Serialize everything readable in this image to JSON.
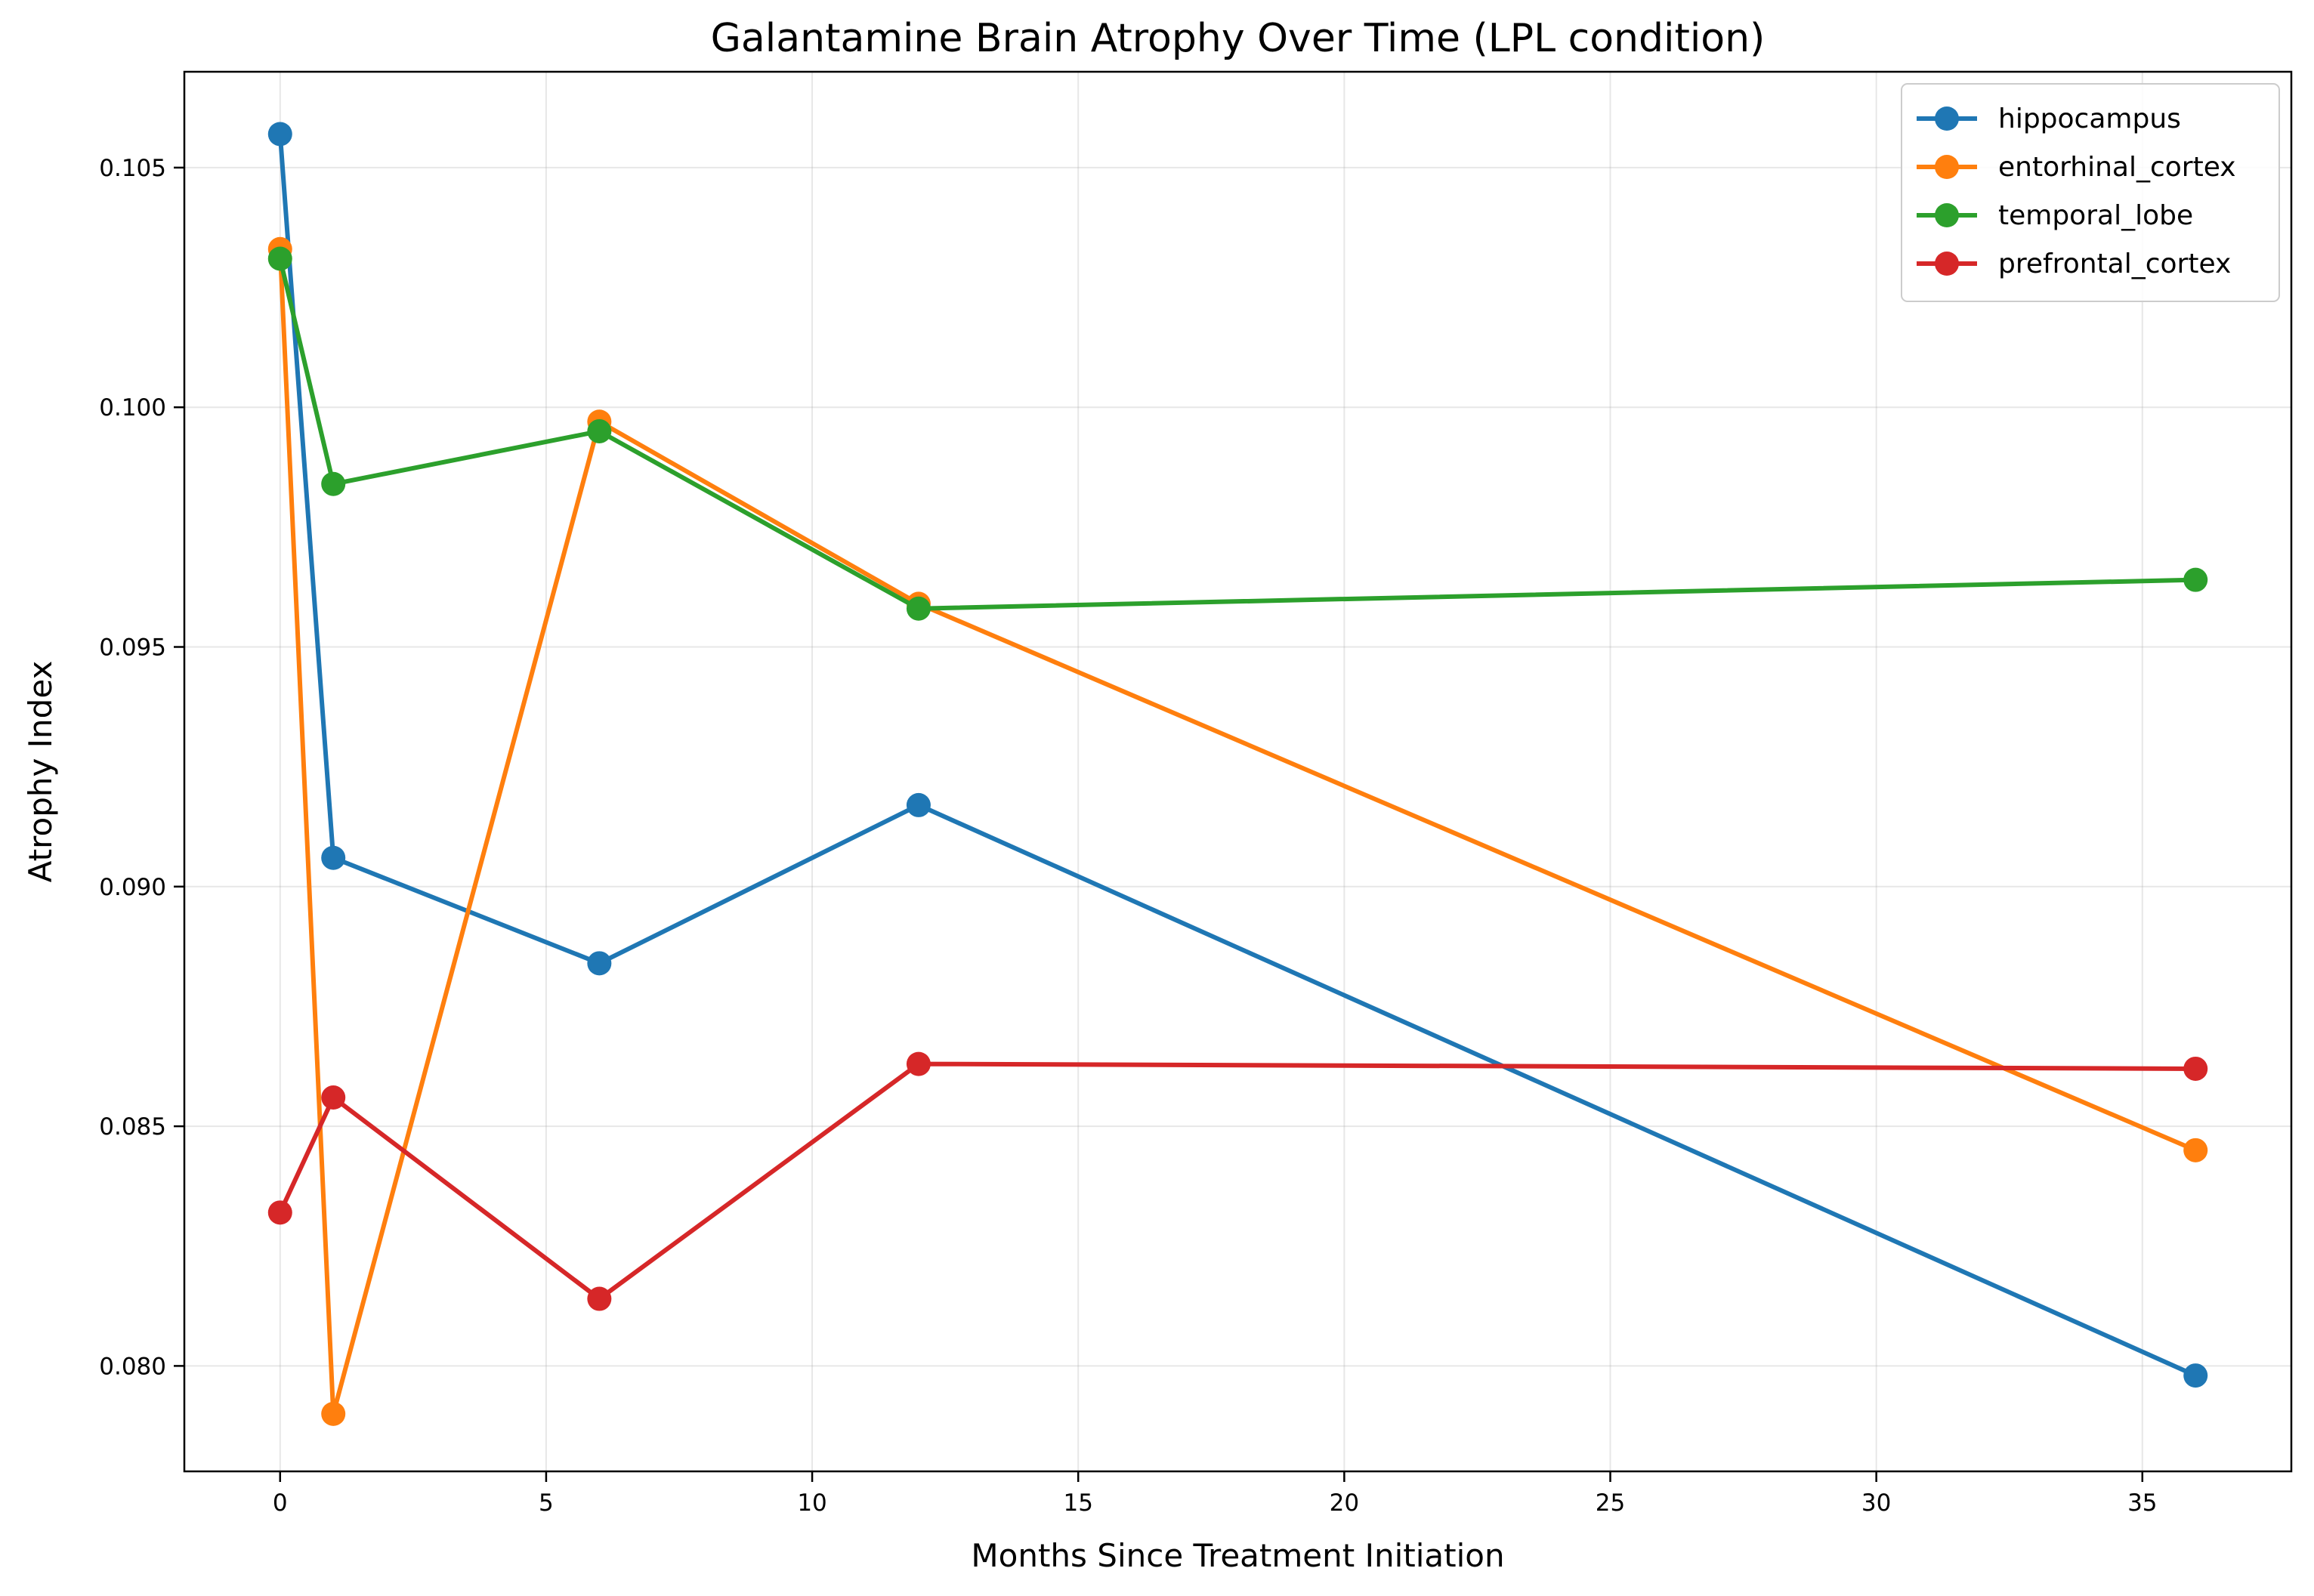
{
  "chart_data": {
    "type": "line",
    "title": "Galantamine Brain Atrophy Over Time (LPL condition)",
    "xlabel": "Months Since Treatment Initiation",
    "ylabel": "Atrophy Index",
    "x": [
      0,
      1,
      6,
      12,
      36
    ],
    "xlim": [
      -1.8,
      37.8
    ],
    "ylim": [
      0.0778,
      0.107
    ],
    "xticks": [
      0,
      5,
      10,
      15,
      20,
      25,
      30,
      35
    ],
    "yticks": [
      0.08,
      0.085,
      0.09,
      0.095,
      0.1,
      0.105
    ],
    "xtick_labels": [
      "0",
      "5",
      "10",
      "15",
      "20",
      "25",
      "30",
      "35"
    ],
    "ytick_labels": [
      "0.080",
      "0.085",
      "0.090",
      "0.095",
      "0.100",
      "0.105"
    ],
    "grid": true,
    "legend_position": "top-right",
    "series": [
      {
        "name": "hippocampus",
        "color": "#1f77b4",
        "values": [
          0.1057,
          0.0906,
          0.0884,
          0.0917,
          0.0798
        ]
      },
      {
        "name": "entorhinal_cortex",
        "color": "#ff7f0e",
        "values": [
          0.1033,
          0.079,
          0.0997,
          0.0959,
          0.0845
        ]
      },
      {
        "name": "temporal_lobe",
        "color": "#2ca02c",
        "values": [
          0.1031,
          0.0984,
          0.0995,
          0.0958,
          0.0964
        ]
      },
      {
        "name": "prefrontal_cortex",
        "color": "#d62728",
        "values": [
          0.0832,
          0.0856,
          0.0814,
          0.0863,
          0.0862
        ]
      }
    ]
  }
}
